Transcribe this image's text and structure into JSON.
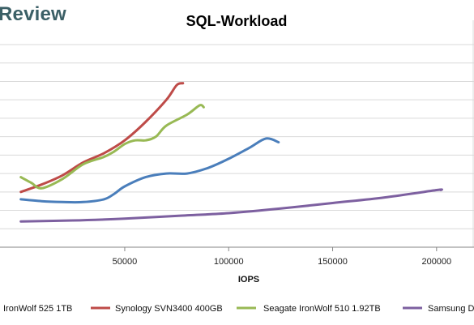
{
  "brand": {
    "text": "Review"
  },
  "chart_data": {
    "type": "line",
    "title": "SQL-Workload",
    "xlabel": "IOPS",
    "ylabel": "",
    "xlim": [
      -10000,
      218000
    ],
    "ylim": [
      0,
      11
    ],
    "x_ticks": [
      50000,
      100000,
      150000,
      200000
    ],
    "x_tick_labels": [
      "50000",
      "100000",
      "150000",
      "200000"
    ],
    "grid": "horizontal",
    "legend_position": "bottom",
    "colors": {
      "grid": "#d9d9d9",
      "axis": "#868686"
    },
    "series": [
      {
        "name": "IronWolf 525 1TB",
        "color": "#4a7ebb",
        "x": [
          0,
          10000,
          20000,
          30000,
          40000,
          45000,
          50000,
          60000,
          70000,
          80000,
          90000,
          100000,
          110000,
          118000,
          124000
        ],
        "y": [
          2.6,
          2.5,
          2.45,
          2.45,
          2.6,
          2.9,
          3.3,
          3.8,
          4.0,
          4.0,
          4.3,
          4.8,
          5.4,
          5.9,
          5.7
        ]
      },
      {
        "name": "Synology SVN3400 400GB",
        "color": "#be4b48",
        "x": [
          0,
          10000,
          20000,
          30000,
          40000,
          50000,
          60000,
          70000,
          75000,
          78000
        ],
        "y": [
          3.0,
          3.4,
          3.9,
          4.6,
          5.1,
          5.8,
          6.8,
          8.0,
          8.8,
          8.9
        ]
      },
      {
        "name": "Seagate IronWolf 510 1.92TB",
        "color": "#98b954",
        "x": [
          0,
          5000,
          10000,
          20000,
          30000,
          40000,
          45000,
          50000,
          55000,
          60000,
          65000,
          70000,
          80000,
          86000,
          88000
        ],
        "y": [
          3.8,
          3.5,
          3.2,
          3.7,
          4.5,
          4.9,
          5.2,
          5.6,
          5.8,
          5.8,
          6.0,
          6.6,
          7.2,
          7.7,
          7.6
        ]
      },
      {
        "name": "Samsung D",
        "color": "#7d60a0",
        "x": [
          0,
          25000,
          50000,
          75000,
          100000,
          125000,
          150000,
          175000,
          200000,
          202000
        ],
        "y": [
          1.4,
          1.45,
          1.55,
          1.7,
          1.85,
          2.1,
          2.4,
          2.7,
          3.1,
          3.1
        ]
      }
    ]
  }
}
